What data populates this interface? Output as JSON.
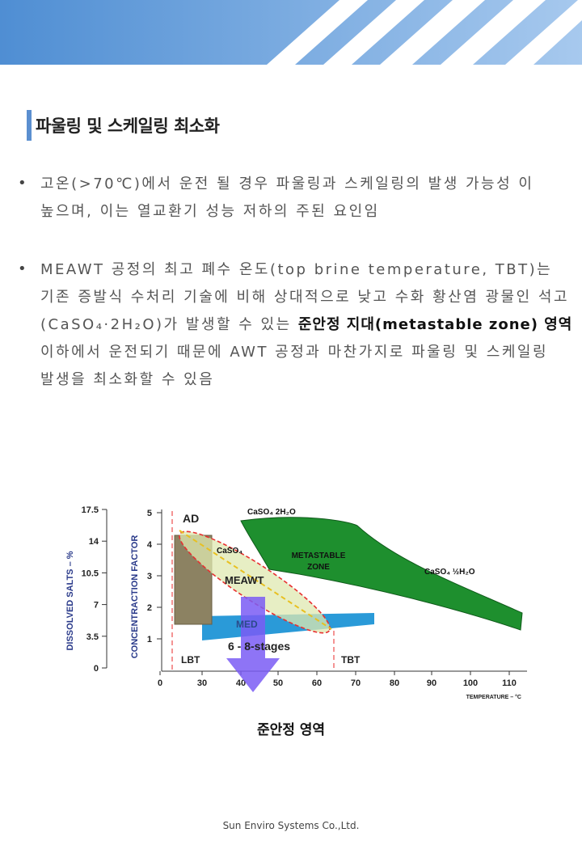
{
  "page": {
    "title": "파울링 및 스케일링 최소화",
    "bullet_symbol": "•",
    "bullets": [
      {
        "text": "고온(>70℃)에서 운전 될 경우 파울링과 스케일링의 발생 가능성 이 높으며, 이는 열교환기 성능 저하의 주된 요인임"
      },
      {
        "text_before": "MEAWT 공정의 최고 폐수 온도(top brine temperature, TBT)는 기존 증발식 수처리 기술에 비해 상대적으로 낮고 수화 황산염 광물인 석고(CaSO₄·2H₂O)가 발생할 수 있는 ",
        "text_bold": "준안정 지대(metastable zone) 영역",
        "text_after": " 이하에서 운전되기 때문에 AWT 공정과 마찬가지로 파울링 및 스케일링 발생을 최소화할 수 있음"
      }
    ],
    "figure_caption": "준안정 영역",
    "footer": "Sun Enviro Systems Co.,Ltd."
  },
  "chart_data": {
    "type": "area",
    "xlabel": "TEMPERATURE – °C",
    "ylabel_left": "DISSOLVED SALTS – %",
    "ylabel_right": "CONCENTRACTION FACTOR",
    "x_ticks": [
      "0",
      "30",
      "40",
      "50",
      "60",
      "70",
      "80",
      "90",
      "100",
      "110"
    ],
    "y_ticks_salts": [
      "0",
      "3.5",
      "7",
      "10.5",
      "14",
      "17.5"
    ],
    "y_ticks_cf": [
      "1",
      "2",
      "3",
      "4",
      "5"
    ],
    "labels": {
      "ad": "AD",
      "caso4": "CaSO₄",
      "meawt": "MEAWT",
      "med": "MED",
      "stages": "6 - 8-stages",
      "metastable": "METASTABLE",
      "zone": "ZONE",
      "dihydrate": "CaSO₄ 2H₂O",
      "hemihydrate": "CaSO₄ ½H₂O",
      "lbt": "LBT",
      "tbt": "TBT"
    },
    "colors": {
      "metastable_zone": "#1e8f2e",
      "ad_box": "#8c8262",
      "med_band": "#2a9ad8",
      "arrow": "#7a5cf5",
      "meawt_ellipse": "#dfe8b0"
    }
  }
}
